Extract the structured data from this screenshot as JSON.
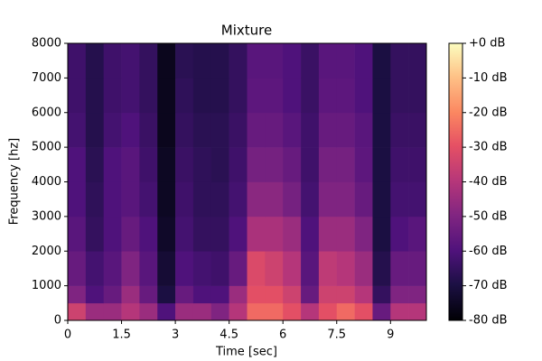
{
  "chart_data": {
    "type": "heatmap",
    "title": "Mixture",
    "xlabel": "Time [sec]",
    "ylabel": "Frequency [hz]",
    "xlim": [
      0,
      10
    ],
    "ylim": [
      0,
      8000
    ],
    "xticks": [
      0,
      1.5,
      3,
      4.5,
      6,
      7.5,
      9
    ],
    "yticks": [
      0,
      1000,
      2000,
      3000,
      4000,
      5000,
      6000,
      7000,
      8000
    ],
    "x_edges": [
      0,
      0.5,
      1,
      1.5,
      2,
      2.5,
      3,
      3.5,
      4,
      4.5,
      5,
      5.5,
      6,
      6.5,
      7,
      7.5,
      8,
      8.5,
      9,
      9.5,
      10
    ],
    "y_edges": [
      0,
      500,
      1000,
      2000,
      3000,
      4000,
      5000,
      6000,
      7000,
      8000
    ],
    "z": [
      [
        -35,
        -45,
        -45,
        -40,
        -45,
        -60,
        -45,
        -45,
        -50,
        -40,
        -25,
        -25,
        -30,
        -40,
        -30,
        -25,
        -30,
        -55,
        -40,
        -40
      ],
      [
        -50,
        -60,
        -55,
        -45,
        -55,
        -70,
        -55,
        -60,
        -60,
        -45,
        -30,
        -30,
        -35,
        -55,
        -35,
        -35,
        -40,
        -65,
        -50,
        -50
      ],
      [
        -55,
        -62,
        -58,
        -50,
        -58,
        -72,
        -60,
        -62,
        -63,
        -55,
        -32,
        -35,
        -40,
        -58,
        -38,
        -40,
        -45,
        -68,
        -55,
        -55
      ],
      [
        -58,
        -65,
        -60,
        -55,
        -60,
        -74,
        -62,
        -65,
        -65,
        -60,
        -42,
        -42,
        -45,
        -60,
        -45,
        -45,
        -50,
        -70,
        -60,
        -58
      ],
      [
        -60,
        -66,
        -60,
        -58,
        -62,
        -75,
        -63,
        -66,
        -66,
        -62,
        -48,
        -48,
        -52,
        -62,
        -50,
        -50,
        -55,
        -70,
        -62,
        -62
      ],
      [
        -60,
        -67,
        -60,
        -58,
        -63,
        -75,
        -64,
        -66,
        -67,
        -63,
        -52,
        -52,
        -55,
        -63,
        -52,
        -52,
        -57,
        -70,
        -63,
        -63
      ],
      [
        -62,
        -68,
        -62,
        -60,
        -64,
        -76,
        -65,
        -67,
        -67,
        -64,
        -55,
        -55,
        -58,
        -63,
        -55,
        -55,
        -58,
        -70,
        -64,
        -64
      ],
      [
        -63,
        -68,
        -63,
        -62,
        -65,
        -76,
        -66,
        -68,
        -68,
        -65,
        -57,
        -57,
        -60,
        -64,
        -57,
        -57,
        -60,
        -70,
        -65,
        -65
      ],
      [
        -63,
        -68,
        -63,
        -62,
        -65,
        -76,
        -67,
        -68,
        -68,
        -65,
        -58,
        -58,
        -60,
        -64,
        -58,
        -58,
        -60,
        -70,
        -65,
        -65
      ]
    ],
    "colorbar": {
      "colormap": "magma",
      "zlim": [
        -80,
        0
      ],
      "ticks": [
        {
          "value": 0,
          "label": "+0 dB"
        },
        {
          "value": -10,
          "label": "-10 dB"
        },
        {
          "value": -20,
          "label": "-20 dB"
        },
        {
          "value": -30,
          "label": "-30 dB"
        },
        {
          "value": -40,
          "label": "-40 dB"
        },
        {
          "value": -50,
          "label": "-50 dB"
        },
        {
          "value": -60,
          "label": "-60 dB"
        },
        {
          "value": -70,
          "label": "-70 dB"
        },
        {
          "value": -80,
          "label": "-80 dB"
        }
      ]
    }
  }
}
